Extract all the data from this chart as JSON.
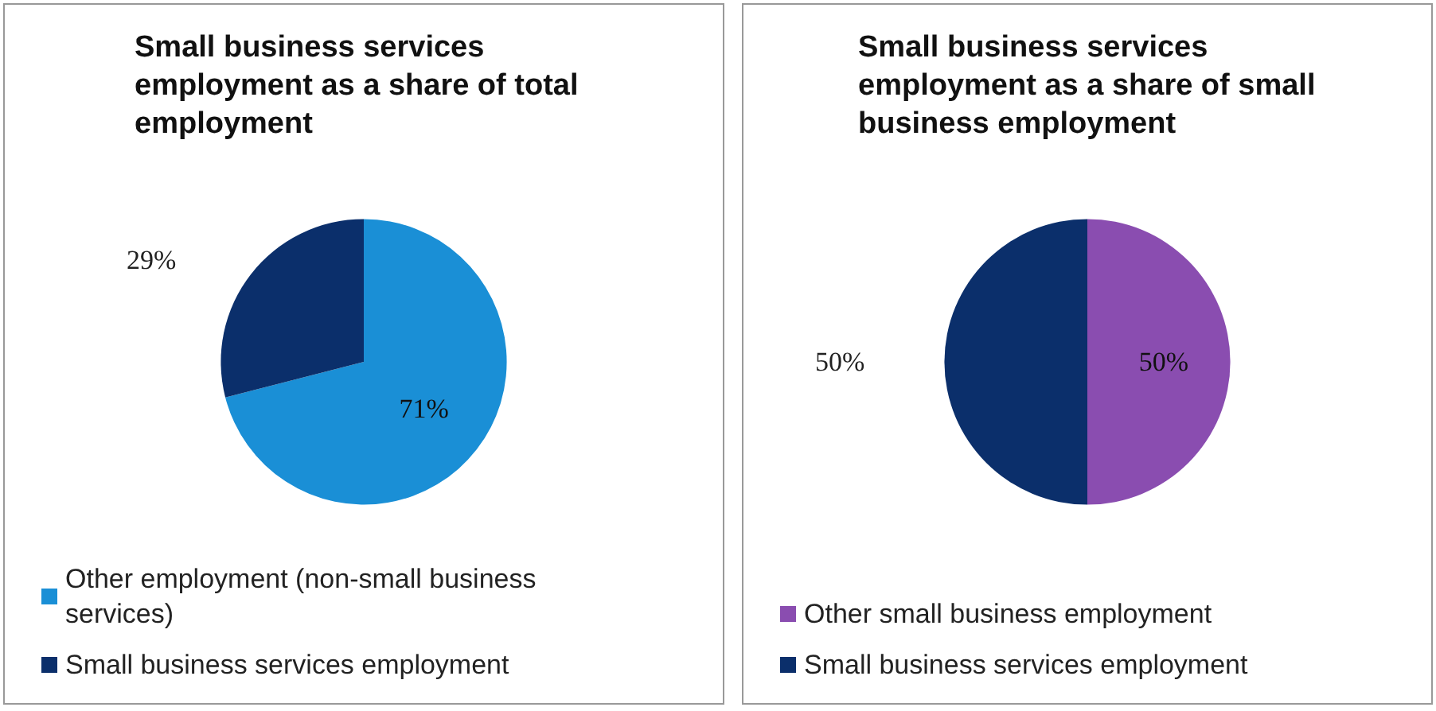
{
  "chart_data": [
    {
      "type": "pie",
      "title": "Small business services employment as a share of total employment",
      "categories": [
        "Other employment (non-small business services)",
        "Small business services employment"
      ],
      "values": [
        71,
        29
      ],
      "value_labels": [
        "71%",
        "29%"
      ],
      "colors": [
        "#1a8fd6",
        "#0b2f6b"
      ],
      "legend": "bottom"
    },
    {
      "type": "pie",
      "title": "Small business services employment as a share of small business employment",
      "categories": [
        "Other small business employment",
        "Small business services employment"
      ],
      "values": [
        50,
        50
      ],
      "value_labels": [
        "50%",
        "50%"
      ],
      "colors": [
        "#8a4db0",
        "#0b2f6b"
      ],
      "legend": "bottom"
    }
  ]
}
